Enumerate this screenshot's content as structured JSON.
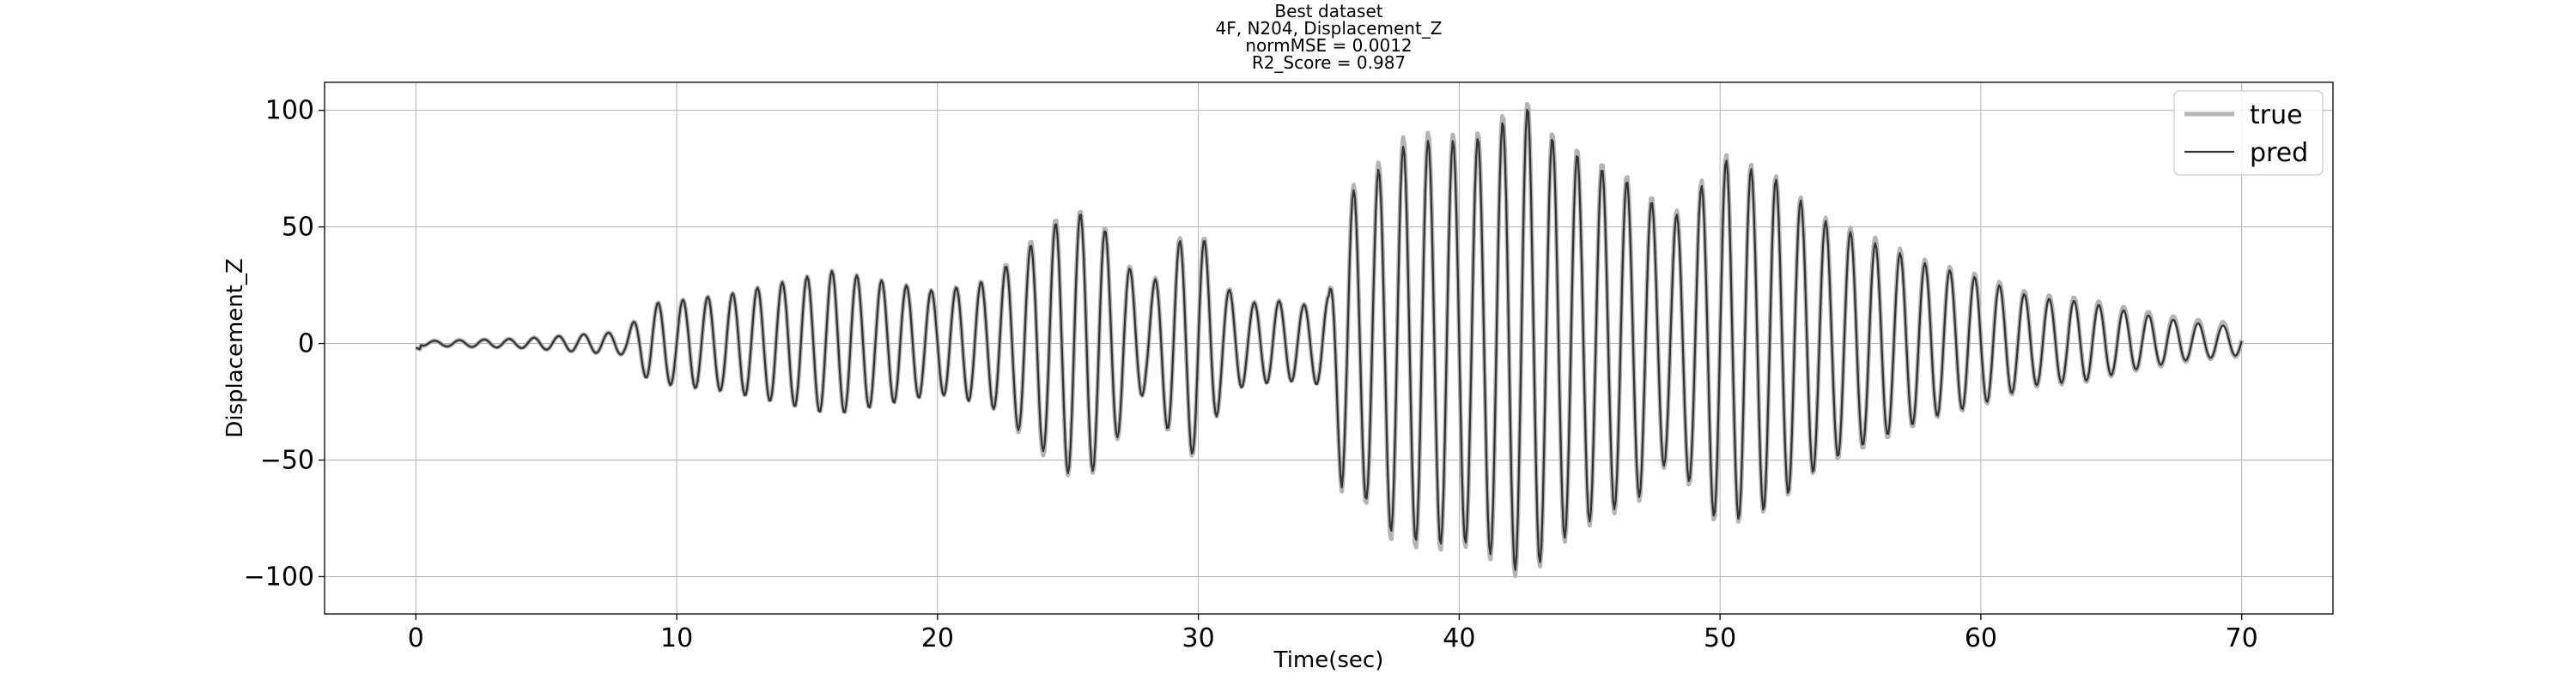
{
  "chart_data": {
    "type": "line",
    "title_lines": [
      "Best dataset",
      "4F, N204, Displacement_Z",
      "normMSE = 0.0012",
      "R2_Score = 0.987"
    ],
    "xlabel": "Time(sec)",
    "ylabel": "Displacement_Z",
    "xlim": [
      -3.5,
      73.5
    ],
    "ylim": [
      -116,
      112
    ],
    "xticks": [
      0,
      10,
      20,
      30,
      40,
      50,
      60,
      70
    ],
    "yticks": [
      -100,
      -50,
      0,
      50,
      100
    ],
    "ytick_labels": [
      "−100",
      "−50",
      "0",
      "50",
      "100"
    ],
    "grid": true,
    "legend_position": "top-right",
    "sample_rate_hz": 20,
    "colors": {
      "true": "#b4b4b4",
      "pred": "#333333"
    },
    "series": [
      {
        "name": "true",
        "envelope": {
          "t": [
            0,
            4,
            8,
            9,
            12,
            16,
            20,
            22,
            24,
            25,
            26,
            27,
            28,
            29,
            30,
            31,
            32,
            33,
            34,
            35,
            35.5,
            36.5,
            37.5,
            39,
            40.5,
            42,
            42.7,
            43.5,
            45,
            47,
            48,
            49,
            50,
            52,
            54,
            56,
            58,
            60,
            62,
            64,
            66,
            68,
            70
          ],
          "amplitude": [
            1,
            2,
            5,
            17,
            21,
            31,
            22,
            27,
            48,
            57,
            56,
            40,
            20,
            42,
            51,
            24,
            17,
            18,
            16,
            20,
            65,
            70,
            87,
            90,
            88,
            100,
            103,
            90,
            79,
            68,
            52,
            64,
            81,
            72,
            53,
            44,
            34,
            28,
            20,
            18,
            13,
            9,
            7
          ]
        },
        "frequency_hz": 1.05,
        "offset_end": 1.5
      },
      {
        "name": "pred",
        "envelope": {
          "t": [
            0,
            4,
            8,
            9,
            12,
            16,
            20,
            22,
            24,
            25,
            26,
            27,
            28,
            29,
            30,
            31,
            32,
            33,
            34,
            35,
            35.5,
            36.5,
            37.5,
            39,
            40.5,
            42,
            42.7,
            43.5,
            45,
            47,
            48,
            49,
            50,
            52,
            54,
            56,
            58,
            60,
            62,
            64,
            66,
            68,
            70
          ],
          "amplitude": [
            1,
            2,
            5,
            17,
            21,
            31,
            22,
            27,
            46,
            56,
            55,
            39,
            20,
            41,
            50,
            24,
            17,
            18,
            16,
            20,
            63,
            68,
            83,
            87,
            86,
            97,
            101,
            88,
            77,
            66,
            51,
            62,
            79,
            71,
            52,
            42,
            33,
            27,
            19,
            17,
            12,
            8,
            6
          ]
        },
        "frequency_hz": 1.05,
        "offset_end": 1.0
      }
    ]
  }
}
